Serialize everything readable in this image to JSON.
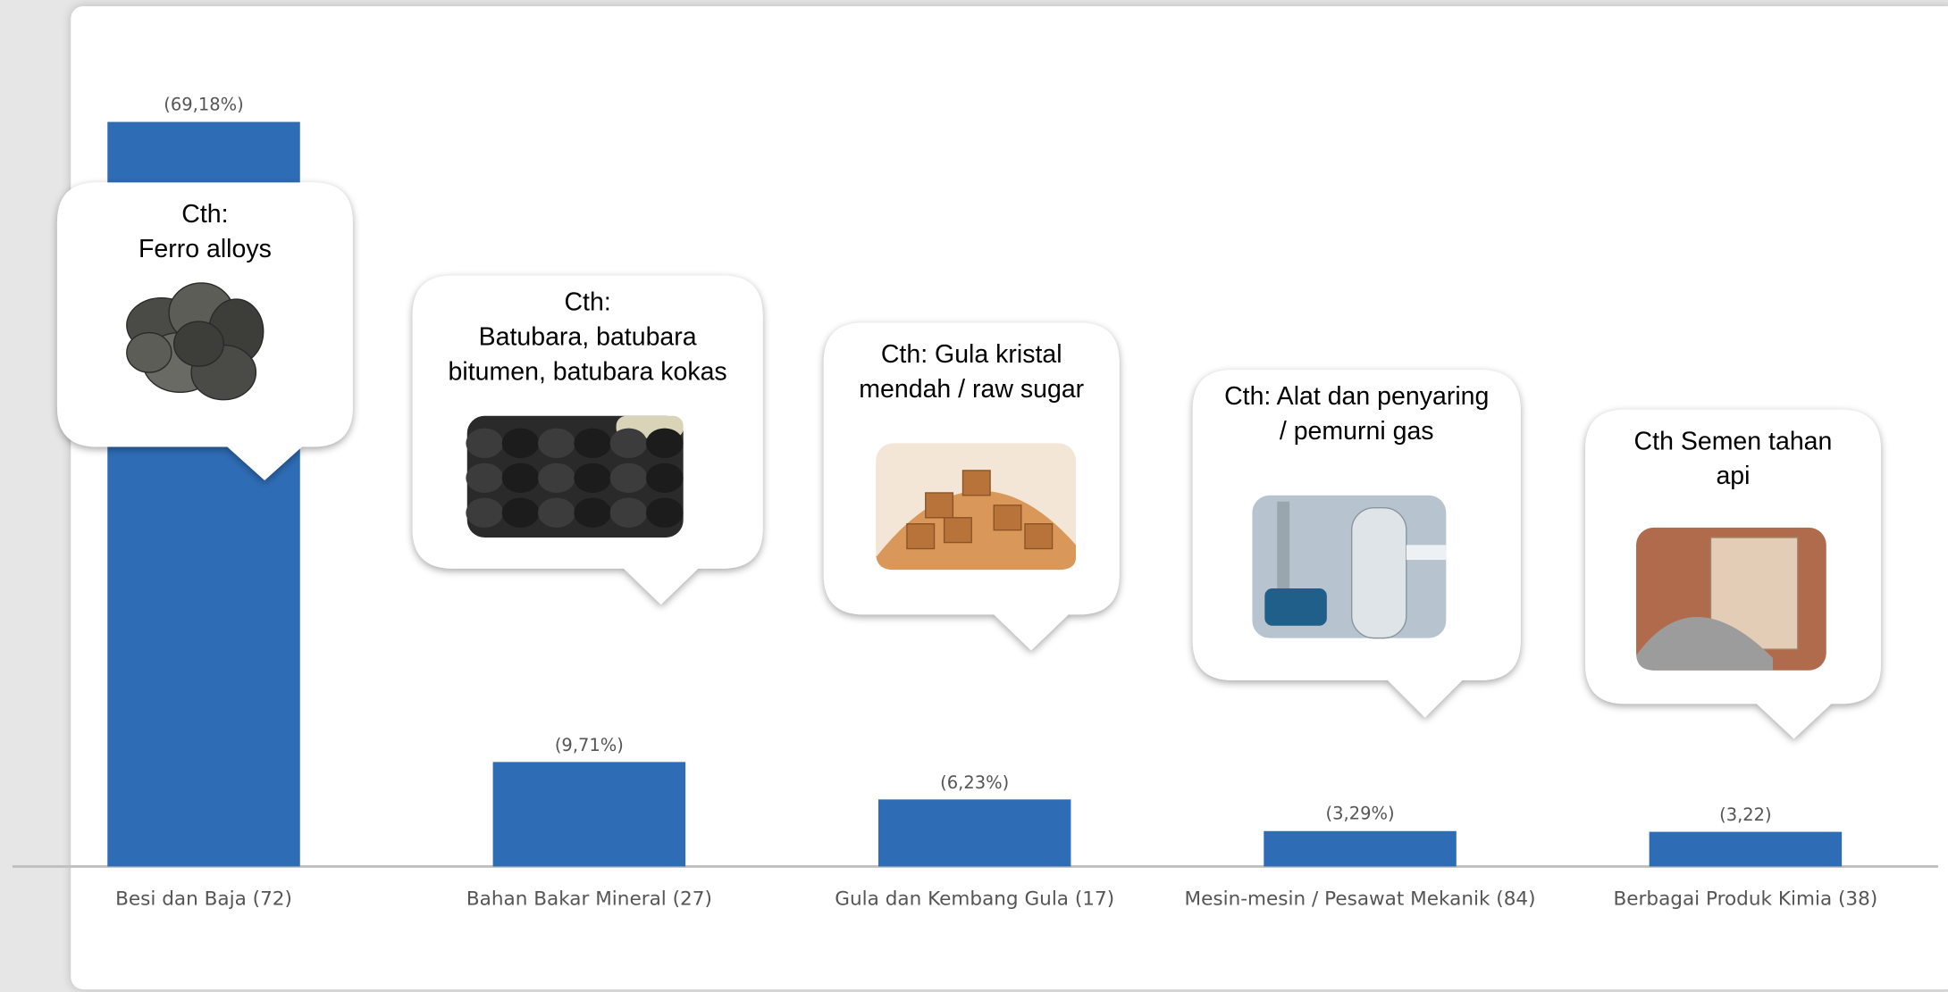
{
  "chart_data": {
    "type": "bar",
    "categories": [
      "Besi dan Baja (72)",
      "Bahan Bakar Mineral (27)",
      "Gula dan Kembang Gula (17)",
      "Mesin-mesin / Pesawat Mekanik (84)",
      "Berbagai Produk Kimia (38)"
    ],
    "values": [
      69.18,
      9.71,
      6.23,
      3.29,
      3.22
    ],
    "value_labels": [
      "(69,18%)",
      "(9,71%)",
      "(6,23%)",
      "(3,29%)",
      "(3,22)"
    ],
    "color": "#2e6cb5",
    "annotations": [
      "Cth:\nFerro alloys",
      "Cth:\nBatubara, batubara\nbitumen, batubara kokas",
      "Cth: Gula kristal\nmendah / raw sugar",
      "Cth: Alat dan penyaring\n/ pemurni gas",
      "Cth Semen tahan\napi"
    ]
  }
}
